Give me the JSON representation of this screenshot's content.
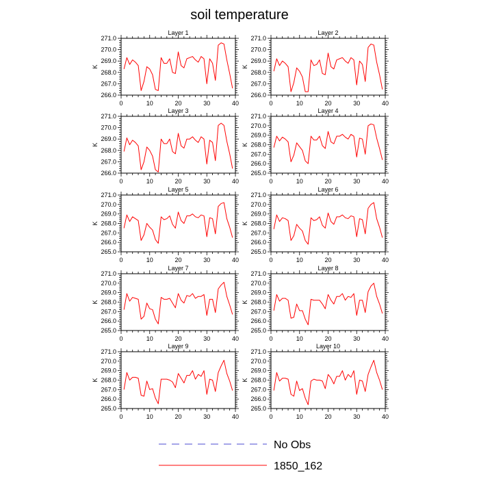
{
  "title": "soil temperature",
  "colors": {
    "model": "#ff0000",
    "obs": "#4a4ad0",
    "axis": "#000000"
  },
  "legend": {
    "placement": "bottom-center",
    "entries": [
      {
        "label": "No Obs",
        "color": "#4a4ad0",
        "style": "dashed"
      },
      {
        "label": "1850_162",
        "color": "#ff0000",
        "style": "solid"
      }
    ]
  },
  "chart_data": [
    {
      "type": "line",
      "title": "Layer 1",
      "ylabel": "K",
      "xlim": [
        0,
        40
      ],
      "ylim": [
        266.0,
        271.0
      ],
      "xticks": [
        0,
        10,
        20,
        30,
        40
      ],
      "yticks": [
        "266.0",
        "267.0",
        "268.0",
        "269.0",
        "270.0",
        "271.0"
      ],
      "x": [
        1,
        2,
        3,
        4,
        5,
        6,
        7,
        8,
        9,
        10,
        11,
        12,
        13,
        14,
        15,
        16,
        17,
        18,
        19,
        20,
        21,
        22,
        23,
        24,
        25,
        26,
        27,
        28,
        29,
        30,
        31,
        32,
        33,
        34,
        35,
        36,
        37,
        38,
        39
      ],
      "series": [
        {
          "name": "1850_162",
          "values": [
            268.3,
            269.3,
            268.7,
            269.1,
            268.9,
            268.6,
            266.4,
            267.2,
            268.5,
            268.3,
            267.8,
            266.5,
            266.4,
            269.3,
            268.8,
            268.8,
            269.2,
            268.0,
            267.9,
            269.8,
            268.6,
            268.4,
            269.2,
            269.3,
            269.4,
            269.1,
            268.9,
            269.4,
            269.2,
            267.0,
            269.2,
            268.8,
            267.3,
            270.4,
            270.6,
            270.5,
            269.1,
            267.9,
            266.6
          ]
        }
      ]
    },
    {
      "type": "line",
      "title": "Layer 2",
      "ylabel": "K",
      "xlim": [
        0,
        40
      ],
      "ylim": [
        266.0,
        271.0
      ],
      "xticks": [
        0,
        10,
        20,
        30,
        40
      ],
      "yticks": [
        "266.0",
        "267.0",
        "268.0",
        "269.0",
        "270.0",
        "271.0"
      ],
      "x": [
        1,
        2,
        3,
        4,
        5,
        6,
        7,
        8,
        9,
        10,
        11,
        12,
        13,
        14,
        15,
        16,
        17,
        18,
        19,
        20,
        21,
        22,
        23,
        24,
        25,
        26,
        27,
        28,
        29,
        30,
        31,
        32,
        33,
        34,
        35,
        36,
        37,
        38,
        39
      ],
      "series": [
        {
          "name": "1850_162",
          "values": [
            268.1,
            269.2,
            268.6,
            269.0,
            268.8,
            268.5,
            266.3,
            267.1,
            268.4,
            268.1,
            267.6,
            266.3,
            266.3,
            269.1,
            268.6,
            268.7,
            269.1,
            267.9,
            267.8,
            269.7,
            268.5,
            268.3,
            269.1,
            269.2,
            269.3,
            269.0,
            268.8,
            269.3,
            269.1,
            266.9,
            269.0,
            268.7,
            267.2,
            270.2,
            270.5,
            270.4,
            268.9,
            267.8,
            266.5
          ]
        }
      ]
    },
    {
      "type": "line",
      "title": "Layer 3",
      "ylabel": "K",
      "xlim": [
        0,
        40
      ],
      "ylim": [
        266.0,
        271.0
      ],
      "xticks": [
        0,
        10,
        20,
        30,
        40
      ],
      "yticks": [
        "266.0",
        "267.0",
        "268.0",
        "269.0",
        "270.0",
        "271.0"
      ],
      "x": [
        1,
        2,
        3,
        4,
        5,
        6,
        7,
        8,
        9,
        10,
        11,
        12,
        13,
        14,
        15,
        16,
        17,
        18,
        19,
        20,
        21,
        22,
        23,
        24,
        25,
        26,
        27,
        28,
        29,
        30,
        31,
        32,
        33,
        34,
        35,
        36,
        37,
        38,
        39
      ],
      "series": [
        {
          "name": "1850_162",
          "values": [
            267.9,
            269.1,
            268.5,
            268.9,
            268.7,
            268.4,
            266.3,
            267.0,
            268.3,
            268.0,
            267.5,
            266.3,
            266.1,
            269.0,
            268.6,
            268.6,
            269.0,
            267.9,
            267.7,
            269.5,
            268.4,
            268.2,
            269.0,
            269.0,
            269.2,
            268.9,
            268.7,
            269.2,
            269.0,
            266.8,
            268.9,
            268.7,
            267.1,
            270.2,
            270.4,
            270.2,
            268.8,
            267.7,
            266.4
          ]
        }
      ]
    },
    {
      "type": "line",
      "title": "Layer 4",
      "ylabel": "K",
      "xlim": [
        0,
        40
      ],
      "ylim": [
        265.0,
        271.0
      ],
      "xticks": [
        0,
        10,
        20,
        30,
        40
      ],
      "yticks": [
        "265.0",
        "266.0",
        "267.0",
        "268.0",
        "269.0",
        "270.0",
        "271.0"
      ],
      "x": [
        1,
        2,
        3,
        4,
        5,
        6,
        7,
        8,
        9,
        10,
        11,
        12,
        13,
        14,
        15,
        16,
        17,
        18,
        19,
        20,
        21,
        22,
        23,
        24,
        25,
        26,
        27,
        28,
        29,
        30,
        31,
        32,
        33,
        34,
        35,
        36,
        37,
        38,
        39
      ],
      "series": [
        {
          "name": "1850_162",
          "values": [
            267.7,
            268.9,
            268.4,
            268.8,
            268.6,
            268.3,
            266.2,
            266.9,
            268.2,
            267.8,
            267.4,
            266.3,
            266.0,
            268.9,
            268.5,
            268.5,
            268.9,
            267.9,
            267.6,
            269.4,
            268.3,
            268.1,
            268.9,
            268.9,
            269.1,
            268.8,
            268.6,
            269.1,
            268.9,
            266.7,
            268.7,
            268.6,
            267.0,
            270.0,
            270.2,
            270.1,
            268.7,
            267.6,
            266.4
          ]
        }
      ]
    },
    {
      "type": "line",
      "title": "Layer 5",
      "ylabel": "K",
      "xlim": [
        0,
        40
      ],
      "ylim": [
        265.0,
        271.0
      ],
      "xticks": [
        0,
        10,
        20,
        30,
        40
      ],
      "yticks": [
        "265.0",
        "266.0",
        "267.0",
        "268.0",
        "269.0",
        "270.0",
        "271.0"
      ],
      "x": [
        1,
        2,
        3,
        4,
        5,
        6,
        7,
        8,
        9,
        10,
        11,
        12,
        13,
        14,
        15,
        16,
        17,
        18,
        19,
        20,
        21,
        22,
        23,
        24,
        25,
        26,
        27,
        28,
        29,
        30,
        31,
        32,
        33,
        34,
        35,
        36,
        37,
        38,
        39
      ],
      "series": [
        {
          "name": "1850_162",
          "values": [
            267.5,
            268.9,
            268.2,
            268.7,
            268.5,
            268.3,
            266.2,
            266.8,
            268.0,
            267.6,
            267.3,
            266.3,
            265.9,
            268.7,
            268.4,
            268.5,
            268.8,
            267.9,
            267.5,
            269.2,
            268.3,
            268.0,
            268.8,
            268.8,
            269.0,
            268.7,
            268.6,
            268.9,
            268.8,
            266.6,
            268.6,
            268.5,
            266.9,
            269.8,
            270.1,
            270.2,
            268.5,
            267.6,
            266.5
          ]
        }
      ]
    },
    {
      "type": "line",
      "title": "Layer 6",
      "ylabel": "K",
      "xlim": [
        0,
        40
      ],
      "ylim": [
        265.0,
        271.0
      ],
      "xticks": [
        0,
        10,
        20,
        30,
        40
      ],
      "yticks": [
        "265.0",
        "266.0",
        "267.0",
        "268.0",
        "269.0",
        "270.0",
        "271.0"
      ],
      "x": [
        1,
        2,
        3,
        4,
        5,
        6,
        7,
        8,
        9,
        10,
        11,
        12,
        13,
        14,
        15,
        16,
        17,
        18,
        19,
        20,
        21,
        22,
        23,
        24,
        25,
        26,
        27,
        28,
        29,
        30,
        31,
        32,
        33,
        34,
        35,
        36,
        37,
        38,
        39
      ],
      "series": [
        {
          "name": "1850_162",
          "values": [
            267.4,
            268.9,
            268.2,
            268.6,
            268.5,
            268.3,
            266.2,
            266.7,
            267.9,
            267.5,
            267.2,
            266.2,
            265.8,
            268.6,
            268.3,
            268.4,
            268.7,
            267.8,
            267.5,
            269.1,
            268.2,
            267.9,
            268.7,
            268.7,
            268.9,
            268.6,
            268.5,
            268.8,
            268.7,
            266.6,
            268.5,
            268.4,
            266.9,
            269.6,
            270.0,
            270.2,
            268.5,
            267.6,
            266.5
          ]
        }
      ]
    },
    {
      "type": "line",
      "title": "Layer 7",
      "ylabel": "K",
      "xlim": [
        0,
        40
      ],
      "ylim": [
        265.0,
        271.0
      ],
      "xticks": [
        0,
        10,
        20,
        30,
        40
      ],
      "yticks": [
        "265.0",
        "266.0",
        "267.0",
        "268.0",
        "269.0",
        "270.0",
        "271.0"
      ],
      "x": [
        1,
        2,
        3,
        4,
        5,
        6,
        7,
        8,
        9,
        10,
        11,
        12,
        13,
        14,
        15,
        16,
        17,
        18,
        19,
        20,
        21,
        22,
        23,
        24,
        25,
        26,
        27,
        28,
        29,
        30,
        31,
        32,
        33,
        34,
        35,
        36,
        37,
        38,
        39
      ],
      "series": [
        {
          "name": "1850_162",
          "values": [
            267.2,
            268.9,
            268.1,
            268.5,
            268.4,
            268.3,
            266.2,
            266.5,
            267.9,
            267.3,
            267.2,
            266.2,
            265.7,
            268.5,
            268.3,
            268.3,
            268.4,
            267.9,
            267.4,
            268.9,
            268.2,
            267.9,
            268.7,
            268.6,
            268.9,
            268.4,
            268.6,
            268.6,
            268.8,
            266.6,
            268.3,
            268.3,
            266.9,
            269.4,
            269.8,
            270.1,
            268.6,
            267.7,
            266.7
          ]
        }
      ]
    },
    {
      "type": "line",
      "title": "Layer 8",
      "ylabel": "K",
      "xlim": [
        0,
        40
      ],
      "ylim": [
        265.0,
        271.0
      ],
      "xticks": [
        0,
        10,
        20,
        30,
        40
      ],
      "yticks": [
        "265.0",
        "266.0",
        "267.0",
        "268.0",
        "269.0",
        "270.0",
        "271.0"
      ],
      "x": [
        1,
        2,
        3,
        4,
        5,
        6,
        7,
        8,
        9,
        10,
        11,
        12,
        13,
        14,
        15,
        16,
        17,
        18,
        19,
        20,
        21,
        22,
        23,
        24,
        25,
        26,
        27,
        28,
        29,
        30,
        31,
        32,
        33,
        34,
        35,
        36,
        37,
        38,
        39
      ],
      "series": [
        {
          "name": "1850_162",
          "values": [
            267.1,
            268.8,
            268.1,
            268.4,
            268.4,
            268.2,
            266.3,
            266.4,
            267.8,
            267.1,
            267.1,
            266.2,
            265.6,
            268.3,
            268.2,
            268.2,
            268.2,
            267.8,
            267.3,
            268.8,
            268.2,
            267.8,
            268.6,
            268.6,
            268.9,
            268.2,
            268.6,
            268.5,
            268.9,
            266.6,
            268.2,
            268.2,
            266.9,
            269.1,
            269.7,
            270.0,
            268.6,
            267.8,
            266.8
          ]
        }
      ]
    },
    {
      "type": "line",
      "title": "Layer 9",
      "ylabel": "K",
      "xlim": [
        0,
        40
      ],
      "ylim": [
        265.0,
        271.0
      ],
      "xticks": [
        0,
        10,
        20,
        30,
        40
      ],
      "yticks": [
        "265.0",
        "266.0",
        "267.0",
        "268.0",
        "269.0",
        "270.0",
        "271.0"
      ],
      "x": [
        1,
        2,
        3,
        4,
        5,
        6,
        7,
        8,
        9,
        10,
        11,
        12,
        13,
        14,
        15,
        16,
        17,
        18,
        19,
        20,
        21,
        22,
        23,
        24,
        25,
        26,
        27,
        28,
        29,
        30,
        31,
        32,
        33,
        34,
        35,
        36,
        37,
        38,
        39
      ],
      "series": [
        {
          "name": "1850_162",
          "values": [
            267.0,
            268.8,
            268.0,
            268.3,
            268.3,
            268.2,
            266.4,
            266.3,
            267.9,
            267.0,
            267.1,
            266.1,
            265.5,
            268.1,
            268.1,
            268.1,
            268.0,
            267.8,
            267.2,
            268.7,
            268.2,
            267.7,
            268.5,
            268.5,
            269.0,
            268.1,
            268.6,
            268.4,
            269.0,
            266.5,
            268.1,
            268.0,
            266.8,
            268.8,
            269.5,
            270.1,
            268.7,
            267.9,
            266.9
          ]
        }
      ]
    },
    {
      "type": "line",
      "title": "Layer 10",
      "ylabel": "K",
      "xlim": [
        0,
        40
      ],
      "ylim": [
        265.0,
        271.0
      ],
      "xticks": [
        0,
        10,
        20,
        30,
        40
      ],
      "yticks": [
        "265.0",
        "266.0",
        "267.0",
        "268.0",
        "269.0",
        "270.0",
        "271.0"
      ],
      "x": [
        1,
        2,
        3,
        4,
        5,
        6,
        7,
        8,
        9,
        10,
        11,
        12,
        13,
        14,
        15,
        16,
        17,
        18,
        19,
        20,
        21,
        22,
        23,
        24,
        25,
        26,
        27,
        28,
        29,
        30,
        31,
        32,
        33,
        34,
        35,
        36,
        37,
        38,
        39
      ],
      "series": [
        {
          "name": "1850_162",
          "values": [
            266.9,
            268.8,
            267.9,
            268.2,
            268.2,
            268.1,
            266.5,
            266.3,
            267.9,
            266.9,
            267.1,
            266.1,
            265.4,
            267.9,
            268.1,
            268.0,
            268.0,
            267.9,
            267.1,
            268.6,
            268.2,
            267.6,
            268.4,
            268.4,
            269.0,
            268.0,
            268.6,
            268.3,
            269.0,
            266.5,
            268.0,
            267.9,
            266.8,
            268.6,
            269.4,
            270.1,
            268.8,
            268.0,
            267.0
          ]
        }
      ]
    }
  ]
}
